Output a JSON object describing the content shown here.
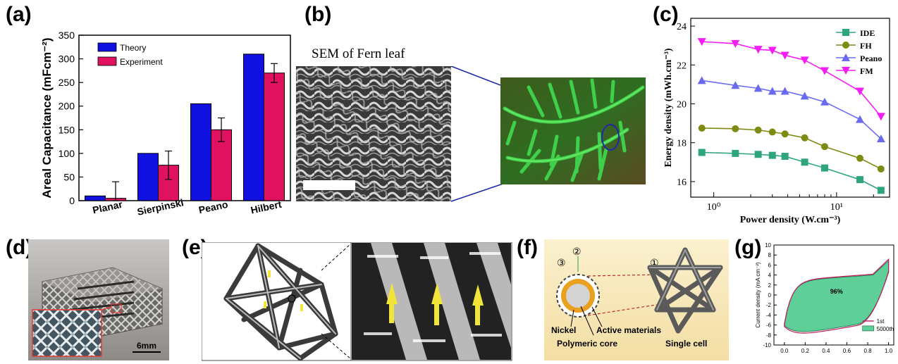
{
  "panels": {
    "a": "(a)",
    "b": "(b)",
    "c": "(c)",
    "d": "(d)",
    "e": "(e)",
    "f": "(f)",
    "g": "(g)"
  },
  "panel_b": {
    "sem_title": "SEM of Fern leaf"
  },
  "panel_d": {
    "scale_label": "6mm"
  },
  "panel_f": {
    "marker_1": "①",
    "marker_2": "②",
    "marker_3": "③",
    "label_nickel": "Nickel",
    "label_core": "Polymeric core",
    "label_active": "Active materials",
    "label_cell": "Single cell"
  },
  "chart_data": [
    {
      "id": "a",
      "type": "bar",
      "ylabel": "Areal Capacitance (mFcm⁻²)",
      "categories": [
        "Planar",
        "Sierpinski",
        "Peano",
        "Hilbert"
      ],
      "ylim": [
        0,
        350
      ],
      "yticks": [
        0,
        50,
        100,
        150,
        200,
        250,
        300,
        350
      ],
      "series": [
        {
          "name": "Theory",
          "color": "#1010e0",
          "values": [
            10,
            100,
            205,
            310
          ]
        },
        {
          "name": "Experiment",
          "color": "#e0115f",
          "values": [
            5,
            75,
            150,
            270
          ],
          "errors": [
            35,
            30,
            25,
            20
          ]
        }
      ],
      "legend": "top-left"
    },
    {
      "id": "c",
      "type": "line",
      "xlabel": "Power density (W.cm⁻³)",
      "ylabel": "Energy density (mWh.cm⁻³)",
      "xscale": "log",
      "xlim": [
        0.65,
        27
      ],
      "ylim": [
        15.2,
        24.4
      ],
      "yticks": [
        16,
        18,
        20,
        22,
        24
      ],
      "xticks": [
        {
          "value": 1,
          "label": "10⁰"
        },
        {
          "value": 10,
          "label": "10¹"
        }
      ],
      "x": [
        0.8,
        1.5,
        2.3,
        3.0,
        3.8,
        5.5,
        8.0,
        15.5,
        23
      ],
      "series": [
        {
          "name": "IDE",
          "color": "#2fa57d",
          "marker": "square",
          "values": [
            17.5,
            17.45,
            17.4,
            17.35,
            17.3,
            17.0,
            16.7,
            16.1,
            15.55
          ]
        },
        {
          "name": "FH",
          "color": "#7f8a12",
          "marker": "circle",
          "values": [
            18.75,
            18.72,
            18.65,
            18.55,
            18.45,
            18.25,
            17.8,
            17.2,
            16.65
          ]
        },
        {
          "name": "Peano",
          "color": "#6a6af0",
          "marker": "triangle-up",
          "values": [
            21.2,
            20.95,
            20.8,
            20.65,
            20.65,
            20.4,
            20.1,
            19.2,
            18.2
          ]
        },
        {
          "name": "FM",
          "color": "#f51df5",
          "marker": "triangle-down",
          "values": [
            23.2,
            23.1,
            22.8,
            22.75,
            22.5,
            22.25,
            21.7,
            20.65,
            19.35
          ]
        }
      ],
      "legend": "top-right"
    },
    {
      "id": "g",
      "type": "line",
      "xlabel": "",
      "ylabel": "Current density (mA cm⁻²)",
      "xlim": [
        -0.1,
        1.05
      ],
      "ylim": [
        -10,
        10
      ],
      "yticks": [
        -10,
        -8,
        -6,
        -4,
        -2,
        0,
        2,
        4,
        6,
        8,
        10
      ],
      "xticks": [
        0.0,
        0.2,
        0.4,
        0.6,
        0.8,
        1.0
      ],
      "annotation": "96%",
      "series": [
        {
          "name": "1st",
          "color": "#c2185b"
        },
        {
          "name": "5000th",
          "color": "#3cb37a",
          "fill": "#5fcf9a"
        }
      ],
      "legend": "bottom-right"
    }
  ]
}
